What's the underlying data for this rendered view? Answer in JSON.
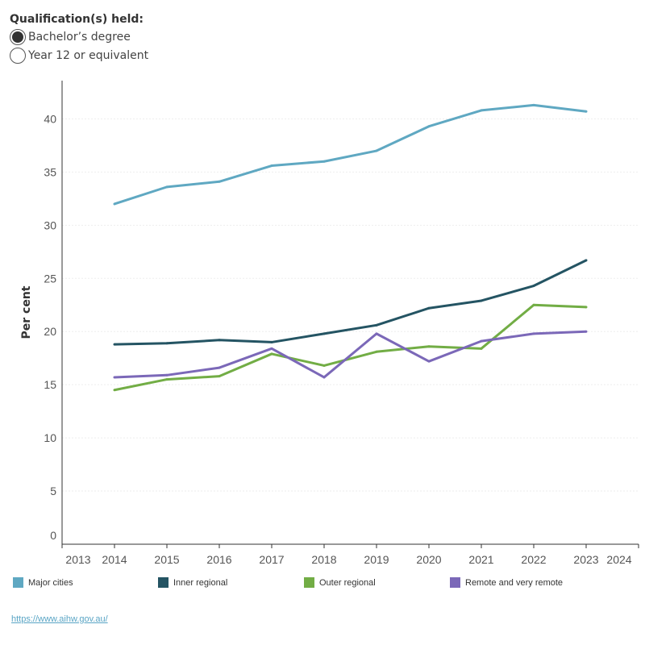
{
  "filter": {
    "title": "Qualification(s) held:",
    "options": [
      {
        "label": "Bachelor’s degree",
        "selected": true
      },
      {
        "label": "Year 12 or equivalent",
        "selected": false
      }
    ]
  },
  "chart_data": {
    "type": "line",
    "title": "",
    "xlabel": "",
    "ylabel": "Per cent",
    "xlim": [
      2013,
      2024
    ],
    "ylim": [
      0,
      43.6
    ],
    "x_ticks": [
      "2013",
      "2014",
      "2015",
      "2016",
      "2017",
      "2018",
      "2019",
      "2020",
      "2021",
      "2022",
      "2023",
      "2024"
    ],
    "y_ticks": [
      "0",
      "5",
      "10",
      "15",
      "20",
      "25",
      "30",
      "35",
      "40"
    ],
    "grid": true,
    "legend_placement": "bottom",
    "x": [
      2014,
      2015,
      2016,
      2017,
      2018,
      2019,
      2020,
      2021,
      2022,
      2023
    ],
    "series": [
      {
        "name": "Major cities",
        "color": "#5fa8c2",
        "values": [
          32.0,
          33.6,
          34.1,
          35.6,
          36.0,
          37.0,
          39.3,
          40.8,
          41.3,
          40.7
        ]
      },
      {
        "name": "Inner regional",
        "color": "#245463",
        "values": [
          18.8,
          18.9,
          19.2,
          19.0,
          19.8,
          20.6,
          22.2,
          22.9,
          24.3,
          26.7
        ]
      },
      {
        "name": "Outer regional",
        "color": "#72ad45",
        "values": [
          14.5,
          15.5,
          15.8,
          17.9,
          16.8,
          18.1,
          18.6,
          18.4,
          22.5,
          22.3
        ]
      },
      {
        "name": "Remote and very remote",
        "color": "#7b68b8",
        "values": [
          15.7,
          15.9,
          16.6,
          18.4,
          15.7,
          19.8,
          17.2,
          19.1,
          19.8,
          20.0
        ]
      }
    ]
  },
  "footer": {
    "link": "https://www.aihw.gov.au/"
  }
}
